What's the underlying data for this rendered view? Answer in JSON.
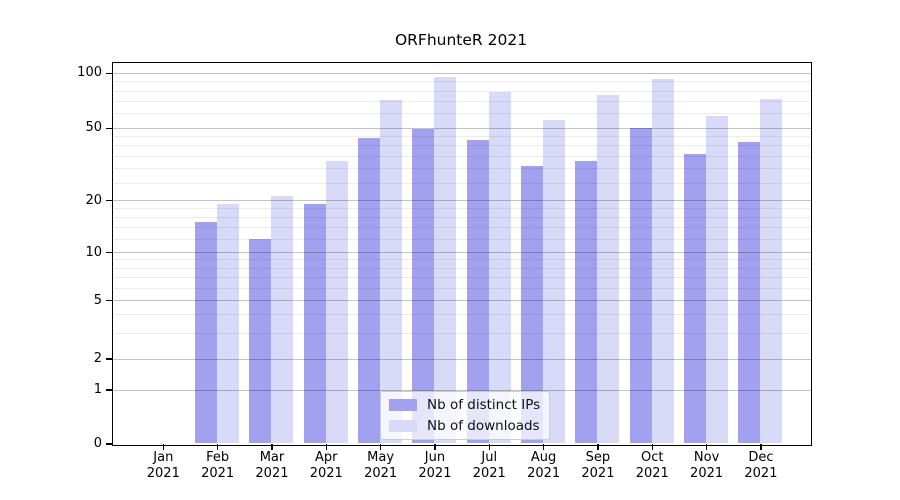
{
  "title": "ORFhunteR 2021",
  "legend": {
    "items": [
      {
        "label": "Nb of distinct IPs",
        "color": "#a1a1f0"
      },
      {
        "label": "Nb of downloads",
        "color": "#d9d9f8"
      }
    ]
  },
  "y_axis": {
    "tick_labels": [
      "0",
      "1",
      "2",
      "5",
      "10",
      "20",
      "50",
      "100"
    ]
  },
  "x_axis": {
    "months": [
      "Jan",
      "Feb",
      "Mar",
      "Apr",
      "May",
      "Jun",
      "Jul",
      "Aug",
      "Sep",
      "Oct",
      "Nov",
      "Dec"
    ],
    "year": "2021"
  },
  "chart_data": {
    "type": "bar",
    "title": "ORFhunteR 2021",
    "categories": [
      "Jan 2021",
      "Feb 2021",
      "Mar 2021",
      "Apr 2021",
      "May 2021",
      "Jun 2021",
      "Jul 2021",
      "Aug 2021",
      "Sep 2021",
      "Oct 2021",
      "Nov 2021",
      "Dec 2021"
    ],
    "series": [
      {
        "name": "Nb of distinct IPs",
        "color": "#a1a1f0",
        "values": [
          0,
          15,
          12,
          19,
          44,
          49,
          43,
          31,
          33,
          50,
          36,
          42
        ]
      },
      {
        "name": "Nb of downloads",
        "color": "#d9d9f8",
        "values": [
          0,
          19,
          21,
          33,
          71,
          95,
          79,
          55,
          76,
          92,
          58,
          72
        ]
      }
    ],
    "y_axis": {
      "scale": "log-like (non-linear, 0 at baseline)",
      "tick_values": [
        0,
        1,
        2,
        5,
        10,
        20,
        50,
        100
      ],
      "minor_gridline_values": [
        3,
        4,
        6,
        7,
        8,
        9,
        12,
        14,
        16,
        18,
        25,
        30,
        35,
        40,
        45,
        60,
        70,
        80,
        90
      ],
      "range_top": 104
    },
    "grid": true,
    "legend_position": "inside-bottom-center",
    "colors": {
      "background": "#ffffff",
      "axis": "#000000",
      "text": "#000000",
      "major_grid": "#c2c2c2",
      "minor_grid": "#ededed",
      "legend_border": "#cccccc"
    }
  }
}
